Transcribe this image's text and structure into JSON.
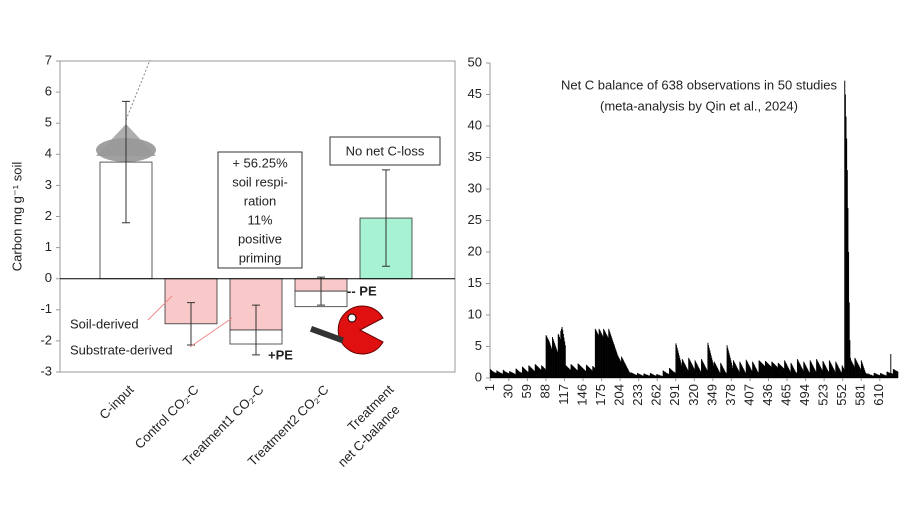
{
  "chart_data": [
    {
      "type": "bar",
      "y_label": "Carbon mg g⁻¹ soil",
      "categories": [
        [
          "C-input"
        ],
        [
          "Control CO₂-C"
        ],
        [
          "Treatment1 CO₂-C"
        ],
        [
          "Treatment2 CO₂-C"
        ],
        [
          "Treatment",
          "net C-balance"
        ]
      ],
      "values": [
        3.75,
        -1.45,
        -1.65,
        -0.4,
        1.95
      ],
      "colors": [
        "#ffffff",
        "#f9c9c9",
        "#f9c9c9",
        "#f9c9c9",
        "#a6f2d2"
      ],
      "errors": [
        1.95,
        0.68,
        0.8,
        0.45,
        1.55
      ],
      "stacked_values": [
        null,
        null,
        -0.45,
        -0.5,
        null
      ],
      "stacked_color": "#ffffff",
      "ylim": [
        -3,
        7
      ],
      "yticks": [
        -3,
        -2,
        -1,
        0,
        1,
        2,
        3,
        4,
        5,
        6,
        7
      ],
      "annotations": [
        {
          "lines": [
            "+ 56.25%",
            "soil respi-",
            "ration",
            "11%",
            "positive",
            "priming"
          ]
        },
        {
          "text": "No net C-loss"
        },
        {
          "text": "Soil-derived"
        },
        {
          "text": "Substrate-derived"
        },
        {
          "text": "-- PE"
        },
        {
          "text": "+PE"
        }
      ]
    },
    {
      "type": "bar",
      "title": "Net C balance of 638 observations in 50 studies",
      "subtitle": "(meta-analysis by Qin et al., 2024)",
      "color": "#000000",
      "xlim": [
        0.5,
        638.5
      ],
      "xticks": [
        1,
        30,
        59,
        88,
        117,
        146,
        175,
        204,
        233,
        262,
        291,
        320,
        349,
        378,
        407,
        436,
        465,
        494,
        523,
        552,
        581,
        610
      ],
      "ylim": [
        0,
        50
      ],
      "yticks": [
        0,
        5,
        10,
        15,
        20,
        25,
        30,
        35,
        40,
        45,
        50
      ],
      "x": [
        1,
        2,
        3,
        4,
        5,
        6,
        7,
        8,
        9,
        10,
        11,
        12,
        13,
        14,
        15,
        16,
        17,
        18,
        19,
        20,
        21,
        22,
        23,
        24,
        25,
        26,
        27,
        28,
        29,
        30,
        31,
        32,
        33,
        34,
        35,
        36,
        37,
        38,
        39,
        40,
        41,
        42,
        43,
        44,
        45,
        46,
        47,
        48,
        49,
        50,
        51,
        52,
        53,
        54,
        55,
        56,
        57,
        58,
        59,
        60,
        61,
        62,
        63,
        64,
        65,
        66,
        67,
        68,
        69,
        70,
        71,
        72,
        73,
        74,
        75,
        76,
        77,
        78,
        79,
        80,
        81,
        82,
        83,
        84,
        85,
        86,
        87,
        88,
        89,
        90,
        91,
        92,
        93,
        94,
        95,
        96,
        97,
        98,
        99,
        100,
        101,
        102,
        103,
        104,
        105,
        106,
        107,
        108,
        109,
        110,
        111,
        112,
        113,
        114,
        115,
        116,
        117,
        118,
        119,
        120,
        121,
        122,
        123,
        124,
        125,
        126,
        127,
        128,
        129,
        130,
        131,
        132,
        133,
        134,
        135,
        136,
        137,
        138,
        139,
        140,
        141,
        142,
        143,
        144,
        145,
        146,
        147,
        148,
        149,
        150,
        151,
        152,
        153,
        154,
        155,
        156,
        157,
        158,
        159,
        160,
        161,
        162,
        163,
        164,
        165,
        166,
        167,
        168,
        169,
        170,
        171,
        172,
        173,
        174,
        175,
        176,
        177,
        178,
        179,
        180,
        181,
        182,
        183,
        184,
        185,
        186,
        187,
        188,
        189,
        190,
        191,
        192,
        193,
        194,
        195,
        196,
        197,
        198,
        199,
        200,
        201,
        202,
        203,
        204,
        205,
        206,
        207,
        208,
        209,
        210,
        211,
        212,
        213,
        214,
        215,
        216,
        217,
        218,
        219,
        220,
        221,
        222,
        223,
        224,
        225,
        226,
        227,
        228,
        229,
        230,
        231,
        232,
        233,
        234,
        235,
        236,
        237,
        238,
        239,
        240,
        241,
        242,
        243,
        244,
        245,
        246,
        247,
        248,
        249,
        250,
        251,
        252,
        253,
        254,
        255,
        256,
        257,
        258,
        259,
        260,
        261,
        262,
        263,
        264,
        265,
        266,
        267,
        268,
        269,
        270,
        271,
        272,
        273,
        274,
        275,
        276,
        277,
        278,
        279,
        280,
        281,
        282,
        283,
        284,
        285,
        286,
        287,
        288,
        289,
        290,
        291,
        292,
        293,
        294,
        295,
        296,
        297,
        298,
        299,
        300,
        301,
        302,
        303,
        304,
        305,
        306,
        307,
        308,
        309,
        310,
        311,
        312,
        313,
        314,
        315,
        316,
        317,
        318,
        319,
        320,
        321,
        322,
        323,
        324,
        325,
        326,
        327,
        328,
        329,
        330,
        331,
        332,
        333,
        334,
        335,
        336,
        337,
        338,
        339,
        340,
        341,
        342,
        343,
        344,
        345,
        346,
        347,
        348,
        349,
        350,
        351,
        352,
        353,
        354,
        355,
        356,
        357,
        358,
        359,
        360,
        361,
        362,
        363,
        364,
        365,
        366,
        367,
        368,
        369,
        370,
        371,
        372,
        373,
        374,
        375,
        376,
        377,
        378,
        379,
        380,
        381,
        382,
        383,
        384,
        385,
        386,
        387,
        388,
        389,
        390,
        391,
        392,
        393,
        394,
        395,
        396,
        397,
        398,
        399,
        400,
        401,
        402,
        403,
        404,
        405,
        406,
        407,
        408,
        409,
        410,
        411,
        412,
        413,
        414,
        415,
        416,
        417,
        418,
        419,
        420,
        421,
        422,
        423,
        424,
        425,
        426,
        427,
        428,
        429,
        430,
        431,
        432,
        433,
        434,
        435,
        436,
        437,
        438,
        439,
        440,
        441,
        442,
        443,
        444,
        445,
        446,
        447,
        448,
        449,
        450,
        451,
        452,
        453,
        454,
        455,
        456,
        457,
        458,
        459,
        460,
        461,
        462,
        463,
        464,
        465,
        466,
        467,
        468,
        469,
        470,
        471,
        472,
        473,
        474,
        475,
        476,
        477,
        478,
        479,
        480,
        481,
        482,
        483,
        484,
        485,
        486,
        487,
        488,
        489,
        490,
        491,
        492,
        493,
        494,
        495,
        496,
        497,
        498,
        499,
        500,
        501,
        502,
        503,
        504,
        505,
        506,
        507,
        508,
        509,
        510,
        511,
        512,
        513,
        514,
        515,
        516,
        517,
        518,
        519,
        520,
        521,
        522,
        523,
        524,
        525,
        526,
        527,
        528,
        529,
        530,
        531,
        532,
        533,
        534,
        535,
        536,
        537,
        538,
        539,
        540,
        541,
        542,
        543,
        544,
        545,
        546,
        547,
        548,
        549,
        550,
        551,
        552,
        553,
        554,
        555,
        556,
        557,
        558,
        559,
        560,
        561,
        562,
        563,
        564,
        565,
        566,
        567,
        568,
        569,
        570,
        571,
        572,
        573,
        574,
        575,
        576,
        577,
        578,
        579,
        580,
        581,
        582,
        583,
        584,
        585,
        586,
        587,
        588,
        589,
        590,
        591,
        592,
        593,
        594,
        595,
        596,
        597,
        598,
        599,
        600,
        601,
        602,
        603,
        604,
        605,
        606,
        607,
        608,
        609,
        610,
        611,
        612,
        613,
        614,
        615,
        616,
        617,
        618,
        619,
        620,
        621,
        622,
        623,
        624,
        625,
        626,
        627,
        628,
        629,
        630,
        631,
        632,
        633,
        634,
        635,
        636,
        637,
        638
      ],
      "values": [
        1.4,
        1.3,
        1.2,
        1.1,
        1,
        1,
        0.9,
        0.9,
        0.8,
        0.8,
        1.2,
        1.1,
        1,
        1,
        0.9,
        0.9,
        0.8,
        0.8,
        0.7,
        0.7,
        1.3,
        1.2,
        1.1,
        1,
        1,
        0.9,
        0.9,
        0.8,
        0.8,
        0.7,
        1.1,
        1,
        1,
        0.9,
        0.9,
        0.8,
        0.8,
        0.7,
        0.7,
        0.6,
        1.5,
        1.4,
        1.3,
        1.2,
        1.1,
        1,
        1,
        0.9,
        0.9,
        0.8,
        1.8,
        1.7,
        1.6,
        1.5,
        1.4,
        1.3,
        1.2,
        1.1,
        1,
        1,
        2,
        1.9,
        1.8,
        1.7,
        1.6,
        1.5,
        1.4,
        1.3,
        1.2,
        1.1,
        2.2,
        2.1,
        2,
        1.9,
        1.8,
        1.7,
        1.6,
        1.5,
        1.4,
        1.3,
        2,
        1.9,
        1.8,
        1.7,
        1.6,
        1.5,
        1.4,
        6.8,
        6.6,
        6.4,
        6.2,
        6,
        5.8,
        5.5,
        5.2,
        4.9,
        4.6,
        6.5,
        6.2,
        5.9,
        5.6,
        5.3,
        5,
        4.7,
        4.4,
        4.1,
        7,
        6.8,
        6.5,
        6.2,
        7.5,
        7.8,
        8.1,
        7.6,
        7,
        6.4,
        5.8,
        5.2,
        2,
        1.9,
        1.8,
        1.7,
        1.6,
        1.5,
        1.4,
        1.3,
        2.2,
        2.1,
        2,
        1.9,
        1.8,
        1.7,
        1.6,
        1.5,
        1.4,
        1.3,
        1.2,
        2.3,
        2.2,
        2.1,
        2,
        1.9,
        1.8,
        1.7,
        1.6,
        1.5,
        1.4,
        1.3,
        1.2,
        1.1,
        2.1,
        2,
        1.9,
        1.8,
        1.7,
        1.6,
        1.5,
        1.4,
        1.3,
        1.2,
        1.9,
        1.8,
        1.7,
        1.6,
        7.8,
        7.6,
        7.4,
        7.2,
        7,
        6.8,
        7.8,
        7.6,
        7.4,
        7.2,
        7,
        6.8,
        6.6,
        7.8,
        7.6,
        7.4,
        7.2,
        7,
        6.8,
        6.6,
        6.4,
        7.8,
        7.5,
        7.2,
        6.9,
        6.6,
        6.3,
        6,
        5.7,
        5.4,
        5.1,
        4.8,
        4.5,
        4.2,
        3.9,
        3.6,
        3.4,
        3.2,
        3,
        2.8,
        2.6,
        3.4,
        3.2,
        3,
        2.8,
        2.6,
        2.4,
        2.2,
        2,
        1.8,
        1.6,
        1.4,
        1.2,
        1,
        0.9,
        0.8,
        0.9,
        0.8,
        0.8,
        0.7,
        0.7,
        0.6,
        0.6,
        0.5,
        0.5,
        0.5,
        0.8,
        0.7,
        0.7,
        0.6,
        0.6,
        0.5,
        0.5,
        0.4,
        0.4,
        0.4,
        0.7,
        0.7,
        0.6,
        0.6,
        0.5,
        0.5,
        0.5,
        0.4,
        0.4,
        0.4,
        0.8,
        0.7,
        0.7,
        0.6,
        0.6,
        0.5,
        0.5,
        0.4,
        0.4,
        0.4,
        0.6,
        0.6,
        0.5,
        0.5,
        0.5,
        0.4,
        0.4,
        0.4,
        0.3,
        0.3,
        1.2,
        1.1,
        1,
        1,
        0.9,
        0.8,
        0.8,
        0.7,
        0.7,
        0.6,
        1.6,
        1.5,
        1.4,
        1.3,
        1.2,
        1.1,
        1,
        1,
        0.9,
        0.8,
        5.5,
        5.2,
        4.8,
        4.4,
        4,
        3.6,
        3.2,
        2.8,
        2.4,
        2,
        3,
        2.8,
        2.6,
        2.4,
        2.2,
        2,
        1.8,
        1.6,
        1.4,
        1.2,
        3.2,
        3,
        2.8,
        2.6,
        2.4,
        2.2,
        2,
        1.8,
        1.6,
        1.4,
        2.8,
        2.6,
        2.4,
        2.2,
        2,
        1.8,
        1.6,
        1.4,
        1.2,
        1,
        3,
        2.8,
        2.6,
        2.4,
        2.2,
        2,
        1.8,
        1.6,
        1.4,
        1.2,
        5.6,
        5.2,
        4.8,
        4.4,
        4,
        3.6,
        3.2,
        2.8,
        2.4,
        2,
        2.6,
        2.4,
        2.2,
        2,
        1.8,
        1.6,
        1.4,
        1.2,
        1,
        0.8,
        2.4,
        2.2,
        2,
        1.8,
        1.6,
        1.4,
        1.2,
        1,
        0.9,
        0.8,
        5.2,
        4.8,
        4.4,
        4,
        3.6,
        3.2,
        2.8,
        2.4,
        2,
        1.6,
        2.8,
        2.6,
        2.4,
        2.2,
        2,
        1.8,
        1.6,
        1.4,
        1.2,
        1,
        2.6,
        2.4,
        2.2,
        2,
        1.8,
        1.6,
        1.4,
        1.2,
        1,
        0.8,
        2.9,
        2.7,
        2.5,
        2.3,
        2.1,
        1.9,
        1.7,
        1.5,
        1.3,
        1.1,
        2.6,
        2.4,
        2.2,
        2,
        1.8,
        1.6,
        1.4,
        1.2,
        1,
        0.9,
        2.8,
        2.7,
        2.6,
        2.5,
        2.4,
        2.3,
        2.2,
        2.1,
        2,
        1.9,
        2.7,
        2.6,
        2.5,
        2.4,
        2.3,
        2.2,
        2.1,
        2,
        1.9,
        1.8,
        2.6,
        2.5,
        2.4,
        2.3,
        2.2,
        2.1,
        2,
        1.9,
        1.8,
        1.7,
        2.4,
        2.3,
        2.2,
        2.1,
        2,
        1.9,
        1.8,
        1.7,
        1.6,
        1.5,
        2.8,
        2.6,
        2.4,
        2.2,
        2,
        1.8,
        1.6,
        1.4,
        1.2,
        1,
        2.4,
        2.2,
        2,
        1.8,
        1.6,
        1.4,
        1.2,
        1,
        0.9,
        0.8,
        3,
        2.8,
        2.6,
        2.4,
        2.2,
        2,
        1.8,
        1.6,
        1.4,
        1.2,
        2.6,
        2.4,
        2.2,
        2,
        1.8,
        1.6,
        1.4,
        1.2,
        1,
        0.9,
        2.8,
        2.6,
        2.4,
        2.2,
        2,
        1.8,
        1.6,
        1.4,
        1.2,
        1,
        3,
        2.8,
        2.6,
        2.4,
        2.2,
        2,
        1.8,
        1.6,
        1.4,
        1.2,
        2.7,
        2.5,
        2.3,
        2.1,
        1.9,
        1.7,
        1.5,
        1.3,
        1.1,
        1,
        2.8,
        2.6,
        2.4,
        2.2,
        2,
        1.8,
        1.6,
        1.4,
        1.2,
        1,
        2.6,
        2.4,
        2.2,
        2,
        1.8,
        1.6,
        1.4,
        1.2,
        1,
        0.9,
        2,
        1.8,
        1.6,
        1.4,
        47.2,
        45,
        41.5,
        38,
        33,
        27,
        20,
        12,
        6,
        3.2,
        2.8,
        2.6,
        2.4,
        2.2,
        2,
        1.8,
        3.2,
        3,
        2.8,
        2.6,
        2.4,
        2.2,
        2,
        1.8,
        1.6,
        1.4,
        2.8,
        2.5,
        2.2,
        1.9,
        1.6,
        1.3,
        1,
        0.8,
        0.7,
        0.6,
        0.7,
        0.7,
        0.6,
        0.6,
        0.5,
        0.5,
        0.5,
        0.4,
        0.4,
        0.4,
        0.8,
        0.8,
        0.7,
        0.7,
        0.6,
        0.6,
        0.5,
        0.5,
        0.5,
        0.4,
        0.8,
        0.7,
        0.7,
        0.6,
        0.6,
        0.5,
        0.5,
        0.5,
        0.4,
        0.4,
        1,
        1,
        0.9,
        0.9,
        0.8,
        0.8,
        3.8,
        0.8,
        0.7,
        0.7,
        1.4,
        1.4,
        1.3,
        1.2,
        1.2,
        1.1,
        1.1,
        1
      ]
    }
  ]
}
